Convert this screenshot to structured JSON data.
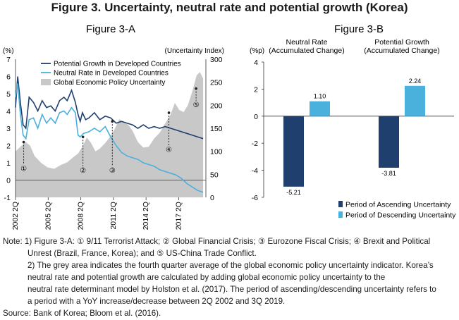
{
  "title": "Figure 3. Uncertainty, neutral rate and potential growth (Korea)",
  "colors": {
    "potential": "#1f3f6e",
    "neutral": "#4ab0dc",
    "uncertainty": "#c8c8c8",
    "ascending": "#1f3f6e",
    "descending": "#4ab0dc"
  },
  "chart_data": [
    {
      "type": "line",
      "title": "Figure 3-A",
      "ylabel_left": "(%)",
      "ylabel_right": "(Uncertainty Index)",
      "ylim_left": [
        -1,
        7
      ],
      "ylim_right": [
        0,
        300
      ],
      "left_ticks": [
        "-1",
        "0",
        "1",
        "2",
        "3",
        "4",
        "5",
        "6",
        "7"
      ],
      "right_ticks": [
        "0",
        "50",
        "100",
        "150",
        "200",
        "250",
        "300"
      ],
      "x_ticks": [
        "2002 2Q",
        "2005 2Q",
        "2008 2Q",
        "2011 2Q",
        "2014 2Q",
        "2017 2Q"
      ],
      "series": [
        {
          "name": "Potential Growth in Developed Countries",
          "points": [
            [
              2002.25,
              4.2
            ],
            [
              2002.45,
              6.0
            ],
            [
              2002.7,
              4.5
            ],
            [
              2002.95,
              3.2
            ],
            [
              2003.2,
              3.0
            ],
            [
              2003.5,
              4.8
            ],
            [
              2003.9,
              4.5
            ],
            [
              2004.3,
              4.0
            ],
            [
              2004.7,
              4.6
            ],
            [
              2005.1,
              4.2
            ],
            [
              2005.5,
              4.3
            ],
            [
              2005.9,
              4.0
            ],
            [
              2006.3,
              4.6
            ],
            [
              2006.7,
              4.8
            ],
            [
              2007.0,
              4.6
            ],
            [
              2007.4,
              5.2
            ],
            [
              2007.75,
              4.5
            ],
            [
              2008.0,
              3.8
            ],
            [
              2008.2,
              3.4
            ],
            [
              2008.4,
              3.9
            ],
            [
              2008.7,
              3.5
            ],
            [
              2009.0,
              3.6
            ],
            [
              2009.5,
              3.9
            ],
            [
              2010.0,
              3.5
            ],
            [
              2010.5,
              3.7
            ],
            [
              2011.0,
              3.6
            ],
            [
              2011.5,
              3.3
            ],
            [
              2012.0,
              3.4
            ],
            [
              2012.5,
              3.3
            ],
            [
              2013.0,
              3.2
            ],
            [
              2013.5,
              3.0
            ],
            [
              2014.0,
              3.2
            ],
            [
              2014.5,
              3.0
            ],
            [
              2015.0,
              3.1
            ],
            [
              2015.5,
              3.0
            ],
            [
              2016.0,
              3.1
            ],
            [
              2016.5,
              3.0
            ],
            [
              2017.0,
              2.9
            ],
            [
              2017.5,
              2.8
            ],
            [
              2018.0,
              2.7
            ],
            [
              2018.5,
              2.6
            ],
            [
              2019.0,
              2.5
            ],
            [
              2019.5,
              2.4
            ]
          ]
        },
        {
          "name": "Neutral Rate in Developed Countries",
          "points": [
            [
              2002.25,
              4.8
            ],
            [
              2002.45,
              5.6
            ],
            [
              2002.7,
              3.8
            ],
            [
              2002.95,
              2.6
            ],
            [
              2003.2,
              2.4
            ],
            [
              2003.5,
              3.5
            ],
            [
              2003.9,
              3.6
            ],
            [
              2004.3,
              3.0
            ],
            [
              2004.7,
              3.8
            ],
            [
              2005.1,
              3.3
            ],
            [
              2005.5,
              3.6
            ],
            [
              2005.9,
              3.3
            ],
            [
              2006.3,
              3.9
            ],
            [
              2006.7,
              4.0
            ],
            [
              2007.0,
              3.8
            ],
            [
              2007.4,
              4.2
            ],
            [
              2007.75,
              3.9
            ],
            [
              2008.0,
              2.6
            ],
            [
              2008.2,
              2.5
            ],
            [
              2008.5,
              2.7
            ],
            [
              2009.0,
              2.8
            ],
            [
              2009.5,
              3.0
            ],
            [
              2010.0,
              2.8
            ],
            [
              2010.5,
              3.1
            ],
            [
              2011.0,
              2.5
            ],
            [
              2011.5,
              2.0
            ],
            [
              2012.0,
              1.6
            ],
            [
              2012.5,
              1.4
            ],
            [
              2013.0,
              1.3
            ],
            [
              2013.5,
              1.2
            ],
            [
              2014.0,
              1.0
            ],
            [
              2014.5,
              0.9
            ],
            [
              2015.0,
              0.8
            ],
            [
              2015.5,
              0.6
            ],
            [
              2016.0,
              0.5
            ],
            [
              2016.5,
              0.4
            ],
            [
              2017.0,
              0.3
            ],
            [
              2017.5,
              0.1
            ],
            [
              2018.0,
              -0.2
            ],
            [
              2018.5,
              -0.4
            ],
            [
              2019.0,
              -0.6
            ],
            [
              2019.5,
              -0.7
            ]
          ]
        },
        {
          "name": "Global Economic Policy Uncertainty",
          "area": true,
          "axis": "right",
          "points": [
            [
              2002.25,
              100
            ],
            [
              2002.8,
              112
            ],
            [
              2003.2,
              120
            ],
            [
              2003.6,
              112
            ],
            [
              2004.0,
              90
            ],
            [
              2004.6,
              75
            ],
            [
              2005.2,
              65
            ],
            [
              2005.8,
              62
            ],
            [
              2006.4,
              70
            ],
            [
              2007.0,
              76
            ],
            [
              2007.6,
              88
            ],
            [
              2008.0,
              95
            ],
            [
              2008.4,
              110
            ],
            [
              2008.8,
              130
            ],
            [
              2009.2,
              118
            ],
            [
              2009.6,
              100
            ],
            [
              2010.0,
              106
            ],
            [
              2010.5,
              118
            ],
            [
              2011.0,
              133
            ],
            [
              2011.4,
              150
            ],
            [
              2011.8,
              170
            ],
            [
              2012.2,
              162
            ],
            [
              2012.6,
              158
            ],
            [
              2013.0,
              145
            ],
            [
              2013.5,
              120
            ],
            [
              2014.0,
              108
            ],
            [
              2014.5,
              110
            ],
            [
              2015.0,
              128
            ],
            [
              2015.5,
              140
            ],
            [
              2016.0,
              160
            ],
            [
              2016.5,
              180
            ],
            [
              2016.9,
              205
            ],
            [
              2017.3,
              190
            ],
            [
              2017.7,
              185
            ],
            [
              2018.1,
              200
            ],
            [
              2018.5,
              230
            ],
            [
              2018.9,
              265
            ],
            [
              2019.2,
              272
            ],
            [
              2019.5,
              258
            ]
          ]
        }
      ],
      "markers": [
        {
          "label": "①",
          "x": 2003.0,
          "top": 2.2,
          "bottom": 0.9
        },
        {
          "label": "②",
          "x": 2008.45,
          "top": 2.5,
          "bottom": 0.8
        },
        {
          "label": "③",
          "x": 2011.15,
          "top": 3.4,
          "bottom": 0.8
        },
        {
          "label": "④",
          "x": 2016.35,
          "top": 3.9,
          "bottom": 2.0
        },
        {
          "label": "⑤",
          "x": 2018.85,
          "top": 5.3,
          "bottom": 4.6
        }
      ]
    },
    {
      "type": "bar",
      "title": "Figure 3-B",
      "ylabel": "(%p)",
      "ylim": [
        -6,
        4
      ],
      "y_ticks": [
        "4",
        "2",
        "0",
        "-2",
        "-4",
        "-6"
      ],
      "group_labels": [
        "Neutral Rate\n(Accumulated Change)",
        "Potential Growth\n(Accumulated Change)"
      ],
      "series": [
        {
          "name": "Period of Ascending Uncertainty",
          "values": [
            -5.21,
            -3.81
          ],
          "labels": [
            "-5.21",
            "-3.81"
          ]
        },
        {
          "name": "Period of Descending Uncertainty",
          "values": [
            1.1,
            2.24
          ],
          "labels": [
            "1.10",
            "2.24"
          ]
        }
      ]
    }
  ],
  "notes": {
    "line1": "Note: 1) Figure 3-A: ① 9/11 Terrorist Attack; ② Global Financial Crisis; ③ Eurozone Fiscal Crisis; ④ Brexit and Political",
    "line2": "Unrest (Brazil, France, Korea); and ⑤ US-China Trade Conflict.",
    "line3": "2) The grey area indicates the fourth quarter average of the global economic policy uncertainty indicator. Korea’s",
    "line4": "neutral rate and potential growth are calculated by adding global economic policy uncertainty to the",
    "line5": "neutral rate determinant model by Holston et al. (2017). The period of ascending/descending uncertainty refers to",
    "line6": "a period with a YoY increase/decrease between 2Q 2002 and 3Q 2019.",
    "source": "Source: Bank of Korea; Bloom et al. (2016)."
  }
}
